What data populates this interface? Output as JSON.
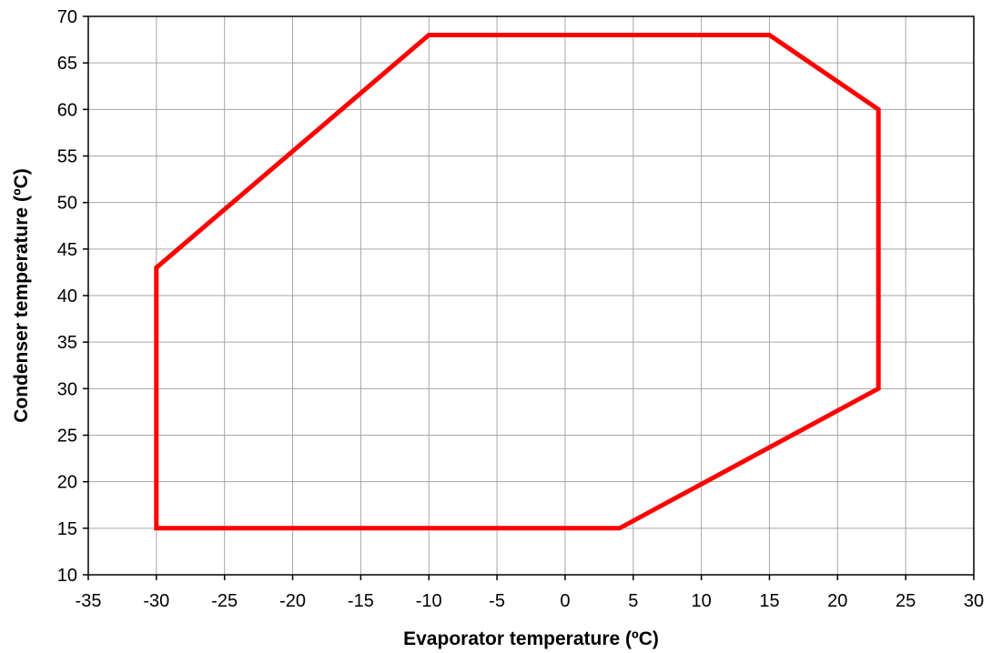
{
  "chart_data": {
    "type": "line",
    "title": "",
    "xlabel": "Evaporator temperature (ºC)",
    "ylabel": "Condenser temperature (ºC)",
    "xlim": [
      -35,
      30
    ],
    "ylim": [
      10,
      70
    ],
    "x_ticks": [
      -35,
      -30,
      -25,
      -20,
      -15,
      -10,
      -5,
      0,
      5,
      10,
      15,
      20,
      25,
      30
    ],
    "y_ticks": [
      10,
      15,
      20,
      25,
      30,
      35,
      40,
      45,
      50,
      55,
      60,
      65,
      70
    ],
    "grid": true,
    "legend": "none",
    "series": [
      {
        "closed": true,
        "color": "#ff0000",
        "points": [
          {
            "x": -30,
            "y": 15
          },
          {
            "x": -30,
            "y": 43
          },
          {
            "x": -10,
            "y": 68
          },
          {
            "x": 15,
            "y": 68
          },
          {
            "x": 23,
            "y": 60
          },
          {
            "x": 23,
            "y": 30
          },
          {
            "x": 4,
            "y": 15
          }
        ]
      }
    ]
  }
}
